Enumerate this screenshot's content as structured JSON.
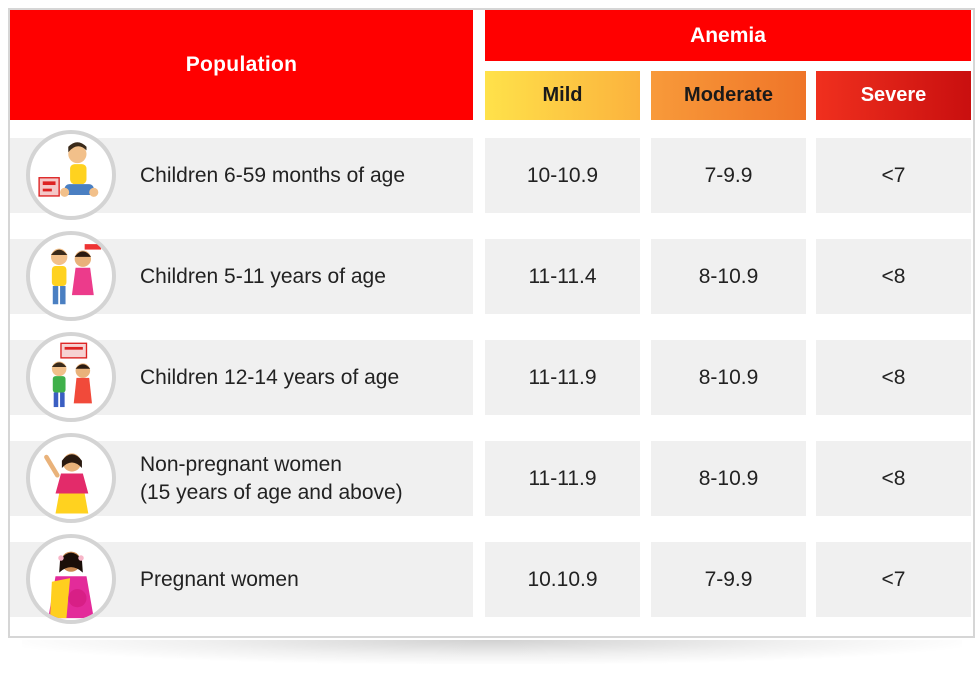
{
  "header": {
    "population": "Population",
    "anemia": "Anemia",
    "mild": "Mild",
    "moderate": "Moderate",
    "severe": "Severe"
  },
  "colors": {
    "header_red": "#ff0000",
    "mild": "#fcc444",
    "moderate": "#f3852f",
    "severe": "#de1f16",
    "row_bg": "#f0f0f0"
  },
  "rows": [
    {
      "population": "Children 6-59 months of age",
      "population_line2": "",
      "mild": "10-10.9",
      "moderate": "7-9.9",
      "severe": "<7",
      "icon": "toddler-icon"
    },
    {
      "population": "Children 5-11 years of age",
      "population_line2": "",
      "mild": "11-11.4",
      "moderate": "8-10.9",
      "severe": "<8",
      "icon": "children-playing-icon"
    },
    {
      "population": "Children 12-14 years of age",
      "population_line2": "",
      "mild": "11-11.9",
      "moderate": "8-10.9",
      "severe": "<8",
      "icon": "teenagers-icon"
    },
    {
      "population": "Non-pregnant women",
      "population_line2": "(15 years of age and above)",
      "mild": "11-11.9",
      "moderate": "8-10.9",
      "severe": "<8",
      "icon": "woman-icon"
    },
    {
      "population": "Pregnant women",
      "population_line2": "",
      "mild": "10.10.9",
      "moderate": "7-9.9",
      "severe": "<7",
      "icon": "pregnant-woman-icon"
    }
  ]
}
